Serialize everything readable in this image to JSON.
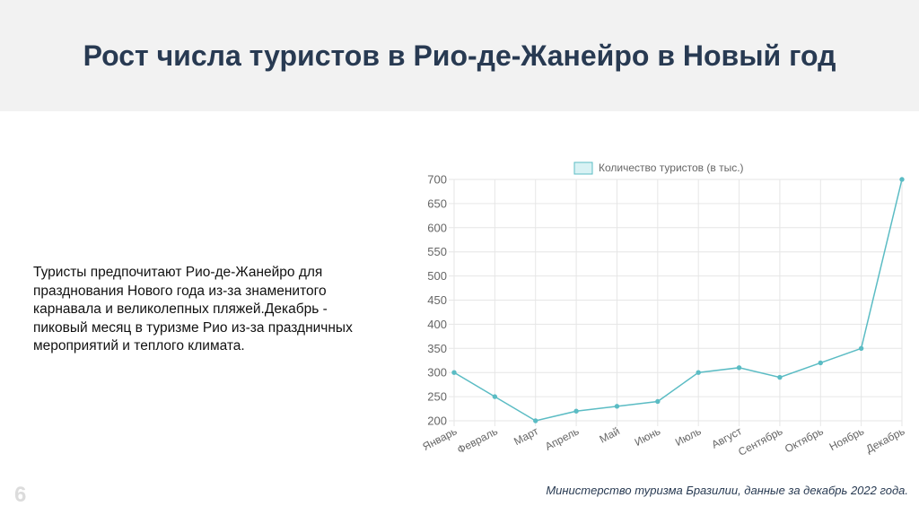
{
  "slide": {
    "title": "Рост числа туристов в Рио-де-Жанейро в Новый год",
    "body": "Туристы предпочитают Рио-де-Жанейро для празднования Нового года из-за знаменитого карнавала и великолепных пляжей.Декабрь - пиковый месяц в туризме Рио из-за праздничных мероприятий и теплого климата.",
    "page_number": "6",
    "source": "Министерство туризма Бразилии, данные за декабрь 2022 года."
  },
  "chart_data": {
    "type": "line",
    "categories": [
      "Январь",
      "Февраль",
      "Март",
      "Апрель",
      "Май",
      "Июнь",
      "Июль",
      "Август",
      "Сентябрь",
      "Октябрь",
      "Ноябрь",
      "Декабрь"
    ],
    "series": [
      {
        "name": "Количество туристов (в тыс.)",
        "values": [
          300,
          250,
          200,
          220,
          230,
          240,
          300,
          310,
          290,
          320,
          350,
          700
        ],
        "color": "#5bbcc4",
        "fill": "#d8f2f4"
      }
    ],
    "y_ticks": [
      200,
      250,
      300,
      350,
      400,
      450,
      500,
      550,
      600,
      650,
      700
    ],
    "ylim": [
      200,
      700
    ],
    "grid": true,
    "legend": "top"
  }
}
